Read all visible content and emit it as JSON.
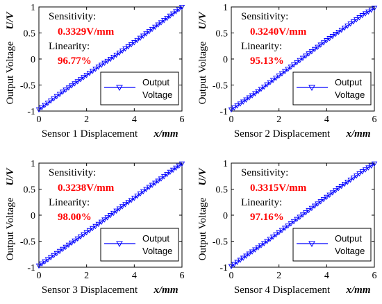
{
  "chart_data": [
    {
      "type": "line",
      "xlabel": "Sensor 1 Displacement",
      "xlabel_unit": "x/mm",
      "ylabel": "Output Voltage",
      "ylabel_unit": "U/V",
      "xlim": [
        0,
        6
      ],
      "ylim": [
        -1,
        1
      ],
      "xticks": [
        "0",
        "2",
        "4",
        "6"
      ],
      "yticks": [
        "-1",
        "-0.5",
        "0",
        "0.5",
        "1"
      ],
      "grid": false,
      "legend_position": "bottom-right",
      "annotations": {
        "sensitivity_label": "Sensitivity:",
        "sensitivity_value": "0.3329V/mm",
        "linearity_label": "Linearity:",
        "linearity_value": "96.77%"
      },
      "series": [
        {
          "name": "Output Voltage",
          "marker": "triangle-down",
          "color": "#0000ff",
          "x": [
            0,
            0.5,
            1,
            1.5,
            2,
            2.5,
            3,
            3.5,
            4,
            4.5,
            5,
            5.5,
            6
          ],
          "y": [
            -0.97,
            -0.8,
            -0.63,
            -0.47,
            -0.31,
            -0.15,
            0.0,
            0.16,
            0.32,
            0.49,
            0.66,
            0.83,
            1.0
          ]
        }
      ]
    },
    {
      "type": "line",
      "xlabel": "Sensor 2 Displacement",
      "xlabel_unit": "x/mm",
      "ylabel": "Output Voltage",
      "ylabel_unit": "U/V",
      "xlim": [
        0,
        6
      ],
      "ylim": [
        -1,
        1
      ],
      "xticks": [
        "0",
        "2",
        "4",
        "6"
      ],
      "yticks": [
        "-1",
        "-0.5",
        "0",
        "0.5",
        "1"
      ],
      "grid": false,
      "legend_position": "bottom-right",
      "annotations": {
        "sensitivity_label": "Sensitivity:",
        "sensitivity_value": "0.3240V/mm",
        "linearity_label": "Linearity:",
        "linearity_value": "95.13%"
      },
      "series": [
        {
          "name": "Output Voltage",
          "marker": "triangle-down",
          "color": "#0000ff",
          "x": [
            0,
            0.5,
            1,
            1.5,
            2,
            2.5,
            3,
            3.5,
            4,
            4.5,
            5,
            5.5,
            6
          ],
          "y": [
            -0.97,
            -0.82,
            -0.66,
            -0.49,
            -0.32,
            -0.15,
            0.02,
            0.19,
            0.36,
            0.52,
            0.68,
            0.84,
            0.98
          ]
        }
      ]
    },
    {
      "type": "line",
      "xlabel": "Sensor 3 Displacement",
      "xlabel_unit": "x/mm",
      "ylabel": "Output Voltage",
      "ylabel_unit": "U/V",
      "xlim": [
        0,
        6
      ],
      "ylim": [
        -1,
        1
      ],
      "xticks": [
        "0",
        "2",
        "4",
        "6"
      ],
      "yticks": [
        "-1",
        "-0.5",
        "0",
        "0.5",
        "1"
      ],
      "grid": false,
      "legend_position": "bottom-right",
      "annotations": {
        "sensitivity_label": "Sensitivity:",
        "sensitivity_value": "0.3238V/mm",
        "linearity_label": "Linearity:",
        "linearity_value": "98.00%"
      },
      "series": [
        {
          "name": "Output Voltage",
          "marker": "triangle-down",
          "color": "#0000ff",
          "x": [
            0,
            0.5,
            1,
            1.5,
            2,
            2.5,
            3,
            3.5,
            4,
            4.5,
            5,
            5.5,
            6
          ],
          "y": [
            -0.97,
            -0.81,
            -0.65,
            -0.49,
            -0.33,
            -0.17,
            0.0,
            0.17,
            0.33,
            0.5,
            0.66,
            0.83,
            0.99
          ]
        }
      ]
    },
    {
      "type": "line",
      "xlabel": "Sensor 4 Displacement",
      "xlabel_unit": "x/mm",
      "ylabel": "Output Voltage",
      "ylabel_unit": "U/V",
      "xlim": [
        0,
        6
      ],
      "ylim": [
        -1,
        1
      ],
      "xticks": [
        "0",
        "2",
        "4",
        "6"
      ],
      "yticks": [
        "-1",
        "-0.5",
        "0",
        "0.5",
        "1"
      ],
      "grid": false,
      "legend_position": "bottom-right",
      "annotations": {
        "sensitivity_label": "Sensitivity:",
        "sensitivity_value": "0.3315V/mm",
        "linearity_label": "Linearity:",
        "linearity_value": "97.16%"
      },
      "series": [
        {
          "name": "Output Voltage",
          "marker": "triangle-down",
          "color": "#0000ff",
          "x": [
            0,
            0.5,
            1,
            1.5,
            2,
            2.5,
            3,
            3.5,
            4,
            4.5,
            5,
            5.5,
            6
          ],
          "y": [
            -0.98,
            -0.82,
            -0.66,
            -0.5,
            -0.33,
            -0.16,
            0.01,
            0.18,
            0.35,
            0.52,
            0.68,
            0.84,
            0.99
          ]
        }
      ]
    }
  ],
  "colors": {
    "series": "#0000ff",
    "annotation_value": "#ff0000",
    "axis": "#000000"
  }
}
